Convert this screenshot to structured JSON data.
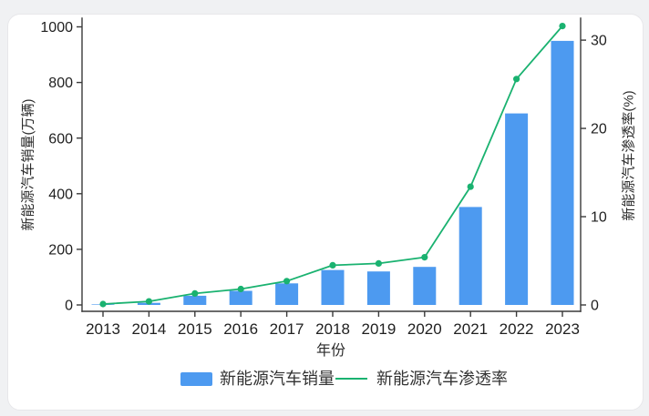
{
  "page": {
    "background_color": "#f0f1f3",
    "card_color": "#ffffff",
    "card_border_color": "#e7e7ea"
  },
  "chart_data": {
    "type": "combo-bar-line",
    "title": "",
    "xlabel": "年份",
    "categories": [
      "2013",
      "2014",
      "2015",
      "2016",
      "2017",
      "2018",
      "2019",
      "2020",
      "2021",
      "2022",
      "2023"
    ],
    "series": [
      {
        "name": "新能源汽车销量",
        "type": "bar",
        "axis": "left",
        "color": "#4D9AF0",
        "values": [
          1.8,
          7.5,
          33.1,
          50.7,
          77.7,
          125.6,
          120.6,
          136.7,
          352.1,
          688.7,
          949.5
        ]
      },
      {
        "name": "新能源汽车渗透率",
        "type": "line",
        "axis": "right",
        "color": "#1AB270",
        "values": [
          0.1,
          0.4,
          1.3,
          1.8,
          2.7,
          4.5,
          4.7,
          5.4,
          13.4,
          25.6,
          31.6
        ]
      }
    ],
    "y_left": {
      "title": "新能源汽车销量(万辆)",
      "ticks": [
        0,
        200,
        400,
        600,
        800,
        1000
      ],
      "range": [
        0,
        1030
      ]
    },
    "y_right": {
      "title": "新能源汽车渗透率(%)",
      "ticks": [
        0,
        10,
        20,
        30
      ],
      "range": [
        0,
        32.5
      ]
    },
    "legend_position": "bottom",
    "grid": false
  }
}
